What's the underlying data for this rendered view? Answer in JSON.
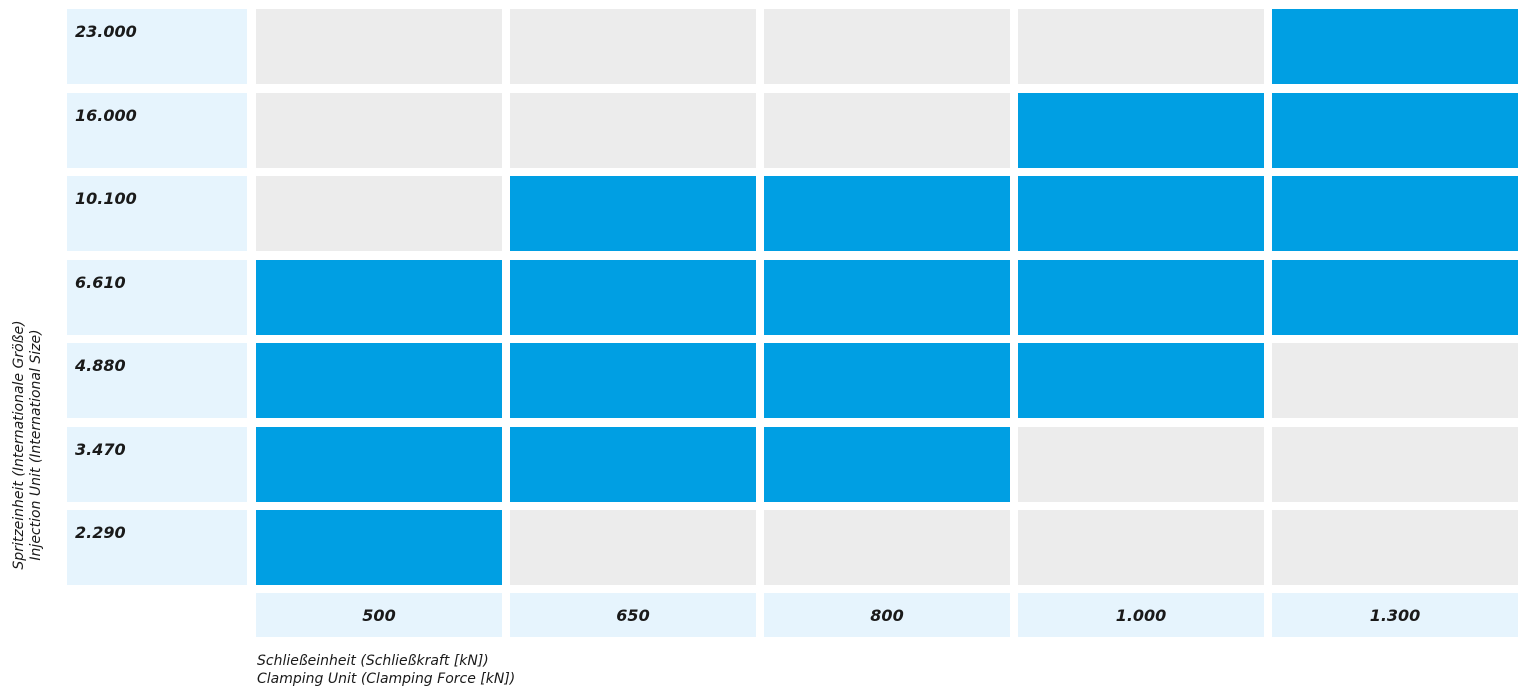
{
  "chart_data": {
    "type": "heatmap",
    "ylabel_line1": "Spritzeinheit (Internationale Größe)",
    "ylabel_line2": "Injection Unit (International Size)",
    "xlabel_line1": "Schließeinheit (Schließkraft [kN])",
    "xlabel_line2": "Clamping Unit (Clamping Force [kN])",
    "x": [
      "500",
      "650",
      "800",
      "1.000",
      "1.300"
    ],
    "y": [
      "23.000",
      "16.000",
      "10.100",
      "6.610",
      "4.880",
      "3.470",
      "2.290"
    ],
    "values": [
      [
        0,
        0,
        0,
        0,
        1
      ],
      [
        0,
        0,
        0,
        1,
        1
      ],
      [
        0,
        1,
        1,
        1,
        1
      ],
      [
        1,
        1,
        1,
        1,
        1
      ],
      [
        1,
        1,
        1,
        1,
        0
      ],
      [
        1,
        1,
        1,
        0,
        0
      ],
      [
        1,
        0,
        0,
        0,
        0
      ]
    ],
    "colors": {
      "available": "#009fe3",
      "unavailable": "#ececec",
      "label_bg": "#e6f4fd"
    }
  }
}
